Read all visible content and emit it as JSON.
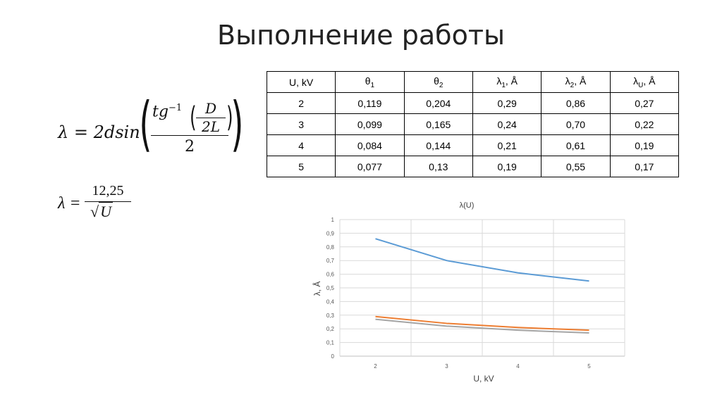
{
  "title": "Выполнение работы",
  "formula1": {
    "lhs": "λ = 2dsin",
    "numerator_text": "tg",
    "numerator_sup": "−1",
    "inner_num": "D",
    "inner_den": "2L",
    "denominator": "2"
  },
  "formula2": {
    "lhs": "λ =",
    "numerator": "12,25",
    "radical": "√",
    "radicand": "U"
  },
  "table": {
    "headers": [
      {
        "main": "U, kV",
        "sub": "",
        "tail": ""
      },
      {
        "main": "θ",
        "sub": "1",
        "tail": ""
      },
      {
        "main": "θ",
        "sub": "2",
        "tail": ""
      },
      {
        "main": "λ",
        "sub": "1",
        "tail": ", Å"
      },
      {
        "main": "λ",
        "sub": "2",
        "tail": ", Å"
      },
      {
        "main": "λ",
        "sub": "U",
        "tail": ", Å"
      }
    ],
    "rows": [
      [
        "2",
        "0,119",
        "0,204",
        "0,29",
        "0,86",
        "0,27"
      ],
      [
        "3",
        "0,099",
        "0,165",
        "0,24",
        "0,70",
        "0,22"
      ],
      [
        "4",
        "0,084",
        "0,144",
        "0,21",
        "0,61",
        "0,19"
      ],
      [
        "5",
        "0,077",
        "0,13",
        "0,19",
        "0,55",
        "0,17"
      ]
    ]
  },
  "chart_data": {
    "type": "line",
    "title": "λ(U)",
    "xlabel": "U, kV",
    "ylabel": "λ, Å",
    "categories": [
      "2",
      "3",
      "4",
      "5"
    ],
    "ylim": [
      0,
      1
    ],
    "yticks": [
      "0",
      "0,1",
      "0,2",
      "0,3",
      "0,4",
      "0,5",
      "0,6",
      "0,7",
      "0,8",
      "0,9",
      "1"
    ],
    "grid": true,
    "series": [
      {
        "values": [
          0.86,
          0.7,
          0.61,
          0.55
        ],
        "color": "#5b9bd5"
      },
      {
        "values": [
          0.29,
          0.24,
          0.21,
          0.19
        ],
        "color": "#ed7d31"
      },
      {
        "values": [
          0.27,
          0.22,
          0.19,
          0.17
        ],
        "color": "#a5a5a5"
      }
    ]
  }
}
